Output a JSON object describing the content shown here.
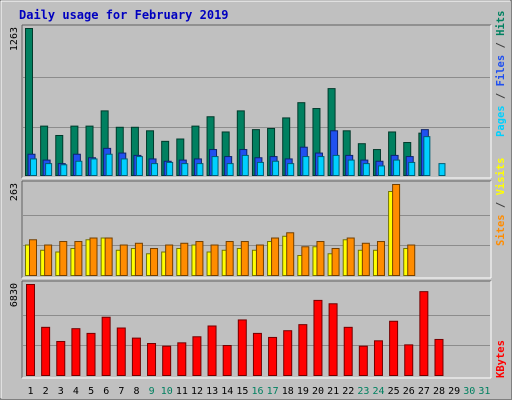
{
  "chart_data": {
    "type": "bar",
    "title": "Daily usage for February 2019",
    "x_labels": [
      "1",
      "2",
      "3",
      "4",
      "5",
      "6",
      "7",
      "8",
      "9",
      "10",
      "11",
      "12",
      "13",
      "14",
      "15",
      "16",
      "17",
      "18",
      "19",
      "20",
      "21",
      "22",
      "23",
      "24",
      "25",
      "26",
      "27",
      "28",
      "29",
      "30",
      "31"
    ],
    "weekend_days": [
      9,
      10,
      16,
      17,
      23,
      24,
      30,
      31
    ],
    "panels": [
      {
        "id": "hits-panel",
        "ymax_label": "1263",
        "ymax": 1263,
        "side_label_parts": [
          "Pages",
          " / ",
          "Files",
          " / ",
          "Hits"
        ],
        "side_label_colors": [
          "#00d0ff",
          "#404040",
          "#2050f0",
          "#404040",
          "#008060"
        ],
        "series": [
          {
            "key": "hits",
            "color": "#008060",
            "values": [
              1263,
              430,
              350,
              430,
              430,
              560,
              420,
              420,
              390,
              300,
              320,
              430,
              510,
              380,
              560,
              400,
              410,
              500,
              630,
              580,
              750,
              390,
              280,
              230,
              380,
              290,
              370,
              0,
              0,
              0,
              0
            ]
          },
          {
            "key": "files",
            "color": "#2050f0",
            "values": [
              190,
              140,
              110,
              190,
              160,
              240,
              200,
              180,
              150,
              130,
              140,
              150,
              230,
              170,
              230,
              160,
              170,
              150,
              250,
              200,
              390,
              180,
              140,
              130,
              180,
              170,
              400,
              0,
              0,
              0,
              0
            ]
          },
          {
            "key": "pages",
            "color": "#00d0ff",
            "values": [
              150,
              110,
              100,
              130,
              150,
              190,
              150,
              170,
              110,
              120,
              110,
              110,
              170,
              110,
              180,
              120,
              130,
              110,
              170,
              170,
              180,
              140,
              110,
              90,
              140,
              120,
              340,
              110,
              0,
              0,
              0
            ]
          }
        ]
      },
      {
        "id": "visits-panel",
        "ymax_label": "263",
        "ymax": 263,
        "side_label_parts": [
          "Sites",
          " / ",
          "Visits"
        ],
        "side_label_colors": [
          "#ff8c00",
          "#404040",
          "#ffff00"
        ],
        "series": [
          {
            "key": "visits",
            "color": "#ffff00",
            "values": [
              90,
              75,
              70,
              80,
              105,
              110,
              75,
              80,
              65,
              70,
              80,
              90,
              70,
              75,
              80,
              75,
              100,
              115,
              60,
              85,
              65,
              105,
              75,
              75,
              243,
              80,
              0,
              0,
              0,
              0,
              0
            ]
          },
          {
            "key": "sites",
            "color": "#ff8c00",
            "values": [
              105,
              90,
              100,
              100,
              110,
              110,
              90,
              95,
              80,
              90,
              95,
              100,
              90,
              100,
              100,
              90,
              110,
              125,
              85,
              100,
              80,
              110,
              95,
              100,
              263,
              90,
              0,
              0,
              0,
              0,
              0
            ]
          }
        ]
      },
      {
        "id": "kbytes-panel",
        "ymax_label": "6830",
        "ymax": 6830,
        "side_label_parts": [
          "KBytes"
        ],
        "side_label_colors": [
          "#ff0000"
        ],
        "series": [
          {
            "key": "kbytes",
            "color": "#ff0000",
            "values": [
              6830,
              3650,
              2600,
              3550,
              3200,
              4400,
              3600,
              2850,
              2450,
              2250,
              2500,
              2950,
              3750,
              2300,
              4200,
              3200,
              2900,
              3400,
              3850,
              5650,
              5400,
              3650,
              2250,
              2650,
              4100,
              2350,
              6300,
              2750,
              0,
              0,
              0
            ]
          }
        ]
      }
    ]
  }
}
